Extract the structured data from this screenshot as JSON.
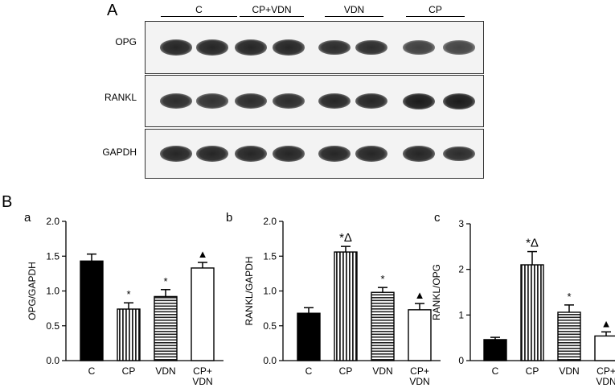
{
  "panels": {
    "A": "A",
    "B": "B"
  },
  "blot": {
    "groups": [
      "C",
      "CP+VDN",
      "VDN",
      "CP"
    ],
    "rows": [
      {
        "label": "OPG",
        "intensity": [
          0.9,
          0.9,
          0.9,
          0.9,
          0.85,
          0.85,
          0.7,
          0.65
        ]
      },
      {
        "label": "RANKL",
        "intensity": [
          0.85,
          0.8,
          0.85,
          0.85,
          0.9,
          0.9,
          1.0,
          1.0
        ]
      },
      {
        "label": "GAPDH",
        "intensity": [
          0.9,
          0.9,
          0.9,
          0.9,
          0.9,
          0.9,
          0.9,
          0.85
        ]
      }
    ]
  },
  "chart_data": [
    {
      "type": "bar",
      "panel_label": "a",
      "categories": [
        "C",
        "CP",
        "VDN",
        "CP+ VDN"
      ],
      "values": [
        1.43,
        0.74,
        0.92,
        1.33
      ],
      "errors": [
        0.1,
        0.09,
        0.1,
        0.08
      ],
      "annotations": [
        "",
        "*",
        "*",
        "▲"
      ],
      "ylabel": "OPG/GAPDH",
      "ylim": [
        0,
        2.0
      ],
      "yticks": [
        "0.0",
        "0.5",
        "1.0",
        "1.5",
        "2.0"
      ],
      "fills": [
        "solid-black",
        "vertical-stripes",
        "horizontal-stripes",
        "white"
      ]
    },
    {
      "type": "bar",
      "panel_label": "b",
      "categories": [
        "C",
        "CP",
        "VDN",
        "CP+ VDN"
      ],
      "values": [
        0.68,
        1.56,
        0.98,
        0.73
      ],
      "errors": [
        0.08,
        0.08,
        0.07,
        0.09
      ],
      "annotations": [
        "",
        "*Δ",
        "*",
        "▲"
      ],
      "ylabel": "RANKL/GAPDH",
      "ylim": [
        0,
        2.0
      ],
      "yticks": [
        "0.0",
        "0.5",
        "1.0",
        "1.5",
        "2.0"
      ],
      "fills": [
        "solid-black",
        "vertical-stripes",
        "horizontal-stripes",
        "white"
      ]
    },
    {
      "type": "bar",
      "panel_label": "c",
      "categories": [
        "C",
        "CP",
        "VDN",
        "CP+ VDN"
      ],
      "values": [
        0.46,
        2.1,
        1.06,
        0.54
      ],
      "errors": [
        0.05,
        0.29,
        0.16,
        0.09
      ],
      "annotations": [
        "",
        "*Δ",
        "*",
        "▲"
      ],
      "ylabel": "RANKL/OPG",
      "ylim": [
        0,
        3
      ],
      "yticks": [
        "0",
        "1",
        "2",
        "3"
      ],
      "fills": [
        "solid-black",
        "vertical-stripes",
        "horizontal-stripes",
        "white"
      ]
    }
  ]
}
